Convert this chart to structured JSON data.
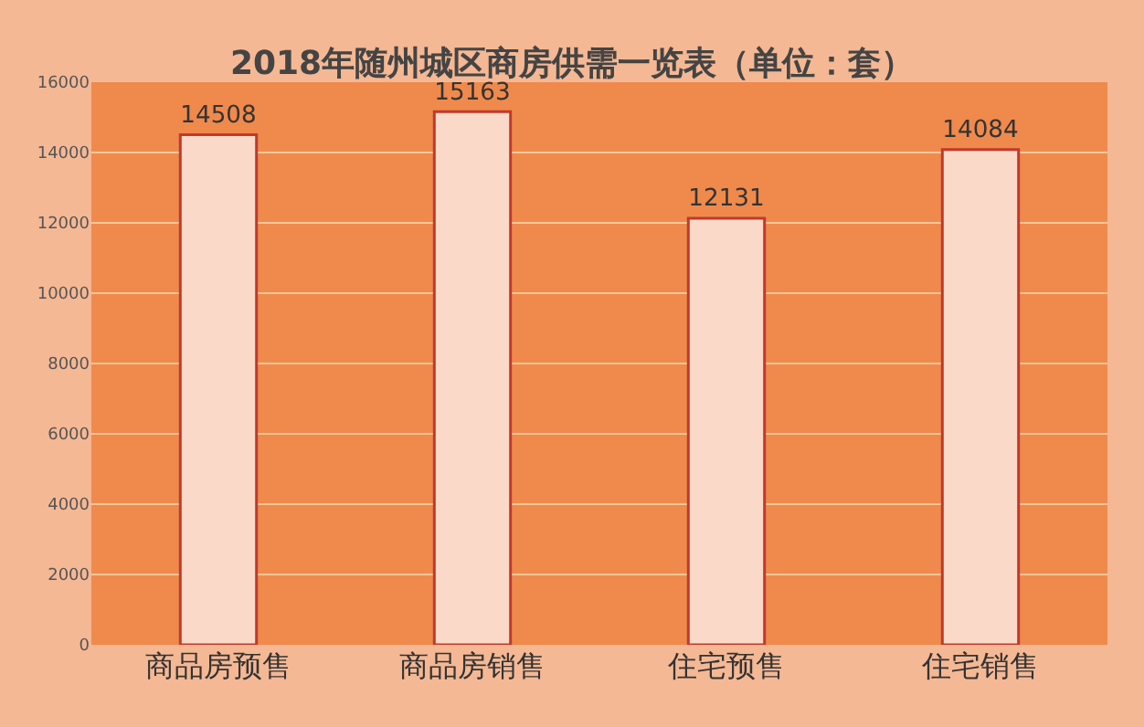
{
  "chart_data": {
    "type": "bar",
    "title": "2018年随州城区商房供需一览表（单位：套）",
    "categories": [
      "商品房预售",
      "商品房销售",
      "住宅预售",
      "住宅销售"
    ],
    "values": [
      14508,
      15163,
      12131,
      14084
    ],
    "color": "#fbd9c8",
    "ylim": [
      0,
      16000
    ],
    "yticks": [
      0,
      2000,
      4000,
      6000,
      8000,
      10000,
      12000,
      14000,
      16000
    ],
    "grid": "y",
    "data_labels": true
  }
}
